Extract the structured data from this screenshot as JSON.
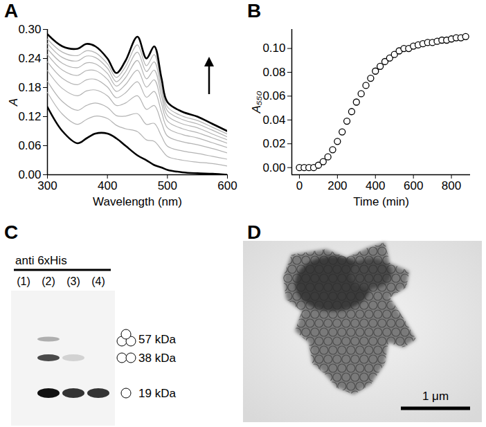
{
  "chart_data": [
    {
      "type": "line",
      "title": "A",
      "x_label": "Wavelength (nm)",
      "y_label": "A",
      "x": [
        300,
        325,
        350,
        365,
        380,
        400,
        415,
        430,
        450,
        465,
        478,
        490,
        500,
        525,
        550,
        575,
        600
      ],
      "series": [
        {
          "color": "#000000",
          "line_style": "bold",
          "values": [
            0.14,
            0.09,
            0.065,
            0.075,
            0.085,
            0.085,
            0.075,
            0.06,
            0.04,
            0.03,
            0.02,
            0.015,
            0.01,
            0.005,
            0.003,
            0.002,
            0.0
          ]
        },
        {
          "color": "#b3b3b3",
          "line_style": "solid",
          "values": [
            0.17,
            0.125,
            0.104,
            0.114,
            0.121,
            0.116,
            0.102,
            0.095,
            0.089,
            0.072,
            0.069,
            0.052,
            0.038,
            0.03,
            0.026,
            0.023,
            0.018
          ]
        },
        {
          "color": "#b3b3b3",
          "line_style": "solid",
          "values": [
            0.193,
            0.151,
            0.133,
            0.143,
            0.148,
            0.139,
            0.122,
            0.121,
            0.126,
            0.104,
            0.106,
            0.08,
            0.059,
            0.049,
            0.044,
            0.038,
            0.032
          ]
        },
        {
          "color": "#b3b3b3",
          "line_style": "solid",
          "values": [
            0.215,
            0.178,
            0.163,
            0.173,
            0.175,
            0.163,
            0.143,
            0.148,
            0.163,
            0.135,
            0.143,
            0.108,
            0.08,
            0.068,
            0.062,
            0.054,
            0.045
          ]
        },
        {
          "color": "#b3b3b3",
          "line_style": "solid",
          "values": [
            0.233,
            0.199,
            0.186,
            0.196,
            0.197,
            0.181,
            0.159,
            0.169,
            0.192,
            0.16,
            0.172,
            0.13,
            0.097,
            0.083,
            0.076,
            0.066,
            0.056
          ]
        },
        {
          "color": "#b3b3b3",
          "line_style": "solid",
          "values": [
            0.248,
            0.216,
            0.205,
            0.215,
            0.215,
            0.197,
            0.172,
            0.186,
            0.216,
            0.181,
            0.196,
            0.148,
            0.111,
            0.095,
            0.087,
            0.076,
            0.065
          ]
        },
        {
          "color": "#b3b3b3",
          "line_style": "solid",
          "values": [
            0.26,
            0.23,
            0.221,
            0.231,
            0.229,
            0.209,
            0.183,
            0.2,
            0.236,
            0.198,
            0.216,
            0.163,
            0.122,
            0.105,
            0.097,
            0.084,
            0.072
          ]
        },
        {
          "color": "#b3b3b3",
          "line_style": "solid",
          "values": [
            0.271,
            0.242,
            0.235,
            0.245,
            0.242,
            0.22,
            0.192,
            0.212,
            0.253,
            0.213,
            0.233,
            0.176,
            0.132,
            0.114,
            0.105,
            0.092,
            0.078
          ]
        },
        {
          "color": "#b3b3b3",
          "line_style": "solid",
          "values": [
            0.28,
            0.253,
            0.246,
            0.256,
            0.252,
            0.229,
            0.201,
            0.223,
            0.268,
            0.225,
            0.248,
            0.187,
            0.14,
            0.121,
            0.112,
            0.098,
            0.084
          ]
        },
        {
          "color": "#000000",
          "line_style": "bold",
          "values": [
            0.29,
            0.265,
            0.26,
            0.27,
            0.265,
            0.24,
            0.21,
            0.235,
            0.285,
            0.24,
            0.265,
            0.2,
            0.15,
            0.13,
            0.12,
            0.105,
            0.09
          ]
        }
      ],
      "xlim": [
        300,
        600
      ],
      "xticks": [
        300,
        400,
        500,
        600
      ],
      "ylim": [
        0,
        0.3
      ],
      "yticks": [
        {
          "value": 0,
          "label": "0.00"
        },
        0.06,
        0.12,
        0.18,
        0.24,
        {
          "value": 0.3,
          "label": "0.30"
        }
      ]
    },
    {
      "type": "scatter",
      "title": "B",
      "x_label": "Time (min)",
      "y_label": "A₅₅₀",
      "color": "#000000",
      "marker": "open circle",
      "x": [
        0,
        25,
        50,
        75,
        100,
        125,
        150,
        175,
        200,
        225,
        250,
        275,
        300,
        325,
        350,
        375,
        400,
        425,
        450,
        475,
        500,
        525,
        550,
        575,
        600,
        625,
        650,
        675,
        700,
        725,
        750,
        775,
        800,
        825,
        850,
        875
      ],
      "values": [
        0,
        0,
        0,
        0,
        0.002,
        0.005,
        0.009,
        0.015,
        0.022,
        0.03,
        0.039,
        0.047,
        0.055,
        0.062,
        0.069,
        0.075,
        0.081,
        0.085,
        0.089,
        0.092,
        0.095,
        0.098,
        0.1,
        0.1,
        0.102,
        0.103,
        0.104,
        0.105,
        0.105,
        0.106,
        0.107,
        0.107,
        0.108,
        0.109,
        0.109,
        0.11
      ],
      "errors": [
        0.002,
        0.002,
        0.002,
        0.002,
        0.002,
        0.002,
        0.002,
        0.002,
        0.002,
        0.002,
        0.002,
        0.002,
        0.002,
        0.002,
        0.002,
        0.002,
        0.002,
        0.002,
        0.002,
        0.002,
        0.002,
        0.002,
        0.002,
        0.002,
        0.002,
        0.002,
        0.002,
        0.002,
        0.002,
        0.002,
        0.002,
        0.002,
        0.002,
        0.002,
        0.002,
        0.002
      ],
      "xlim": [
        -40,
        900
      ],
      "xticks": [
        0,
        200,
        400,
        600,
        800
      ],
      "ylim": [
        -0.006,
        0.116
      ],
      "yticks": [
        {
          "value": 0,
          "label": "0.00"
        },
        0.02,
        0.04,
        0.06,
        0.08,
        {
          "value": 0.1,
          "label": "0.10"
        }
      ]
    },
    {
      "type": "western_blot",
      "title": "C",
      "antibody": "anti 6xHis",
      "lanes": [
        "(1)",
        "(2)",
        "(3)",
        "(4)"
      ],
      "bands": [
        {
          "label": "57 kDa",
          "intensities": [
            0,
            0.3,
            0,
            0
          ]
        },
        {
          "label": "38 kDa",
          "intensities": [
            0,
            0.75,
            0.15,
            0
          ]
        },
        {
          "label": "19 kDa",
          "intensities": [
            0,
            1,
            0.85,
            0.85
          ]
        }
      ]
    },
    {
      "type": "image",
      "title": "D",
      "scale_bar": "1 μm"
    }
  ]
}
